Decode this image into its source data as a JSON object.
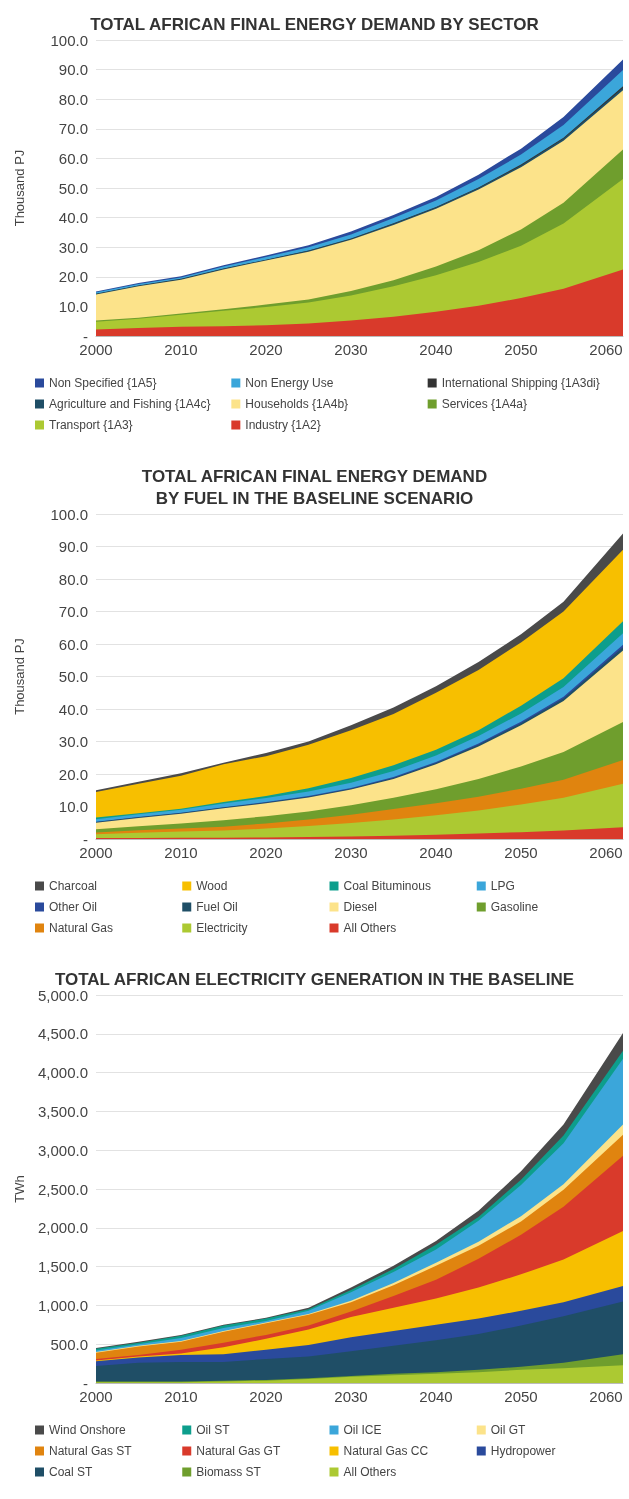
{
  "chart_data": [
    {
      "type": "area",
      "stacked": true,
      "title": "TOTAL AFRICAN FINAL ENERGY DEMAND BY SECTOR",
      "ylabel": "Thousand PJ",
      "x": [
        2000,
        2005,
        2010,
        2015,
        2020,
        2025,
        2030,
        2035,
        2040,
        2045,
        2050,
        2055,
        2062
      ],
      "xlim": [
        2000,
        2062
      ],
      "xticks": [
        2000,
        2010,
        2020,
        2030,
        2040,
        2050,
        2060
      ],
      "ylim": [
        0,
        100
      ],
      "yticks": [
        {
          "value": 0,
          "label": "-"
        },
        {
          "value": 10,
          "label": "10.0"
        },
        {
          "value": 20,
          "label": "20.0"
        },
        {
          "value": 30,
          "label": "30.0"
        },
        {
          "value": 40,
          "label": "40.0"
        },
        {
          "value": 50,
          "label": "50.0"
        },
        {
          "value": 60,
          "label": "60.0"
        },
        {
          "value": 70,
          "label": "70.0"
        },
        {
          "value": 80,
          "label": "80.0"
        },
        {
          "value": 90,
          "label": "90.0"
        },
        {
          "value": 100,
          "label": "100.0"
        }
      ],
      "grid": "y",
      "legend": "bottom",
      "series": [
        {
          "name": "Industry {1A2}",
          "color": "#d93a2b",
          "values": [
            2.2,
            2.7,
            3.1,
            3.3,
            3.6,
            4.2,
            5.2,
            6.5,
            8.2,
            10.2,
            12.8,
            16,
            22.5
          ]
        },
        {
          "name": "Transport {1A3}",
          "color": "#acc932",
          "values": [
            2.6,
            3.1,
            4.1,
            5.2,
            6.2,
            7.1,
            8.5,
            10.3,
            12.3,
            14.8,
            17.7,
            22,
            30.5
          ]
        },
        {
          "name": "Services {1A4a}",
          "color": "#6f9e2d",
          "values": [
            0.4,
            0.4,
            0.4,
            0.5,
            0.8,
            1.0,
            1.5,
            2.0,
            3.0,
            4.0,
            5.5,
            7.0,
            10
          ]
        },
        {
          "name": "Households {1A4b}",
          "color": "#fce38a",
          "values": [
            8.8,
            10.6,
            11.4,
            13.5,
            14.9,
            16.2,
            17.3,
            18.7,
            19.5,
            20.5,
            21,
            21,
            20
          ]
        },
        {
          "name": "Agriculture and Fishing {1A4c}",
          "color": "#1f4e66",
          "values": [
            0.2,
            0.2,
            0.2,
            0.2,
            0.2,
            0.3,
            0.3,
            0.4,
            0.4,
            0.5,
            0.6,
            0.7,
            0.9
          ]
        },
        {
          "name": "International Shipping {1A3di}",
          "color": "#333333",
          "values": [
            0.1,
            0.1,
            0.1,
            0.1,
            0.1,
            0.1,
            0.1,
            0.2,
            0.2,
            0.2,
            0.3,
            0.3,
            0.5
          ]
        },
        {
          "name": "Non Energy Use",
          "color": "#3ba6da",
          "values": [
            0.5,
            0.5,
            0.5,
            0.7,
            0.9,
            1.1,
            1.4,
            1.8,
            2.2,
            2.8,
            3.4,
            4.3,
            5.5
          ]
        },
        {
          "name": "Non Specified {1A5}",
          "color": "#2a4a9c",
          "values": [
            0.2,
            0.3,
            0.4,
            0.4,
            0.5,
            0.7,
            1.0,
            1.0,
            1.2,
            1.5,
            2.0,
            2.7,
            3.5
          ]
        }
      ]
    },
    {
      "type": "area",
      "stacked": true,
      "title": "TOTAL AFRICAN FINAL ENERGY DEMAND\nBY FUEL IN THE BASELINE SCENARIO",
      "ylabel": "Thousand PJ",
      "x": [
        2000,
        2005,
        2010,
        2015,
        2020,
        2025,
        2030,
        2035,
        2040,
        2045,
        2050,
        2055,
        2062
      ],
      "xlim": [
        2000,
        2062
      ],
      "xticks": [
        2000,
        2010,
        2020,
        2030,
        2040,
        2050,
        2060
      ],
      "ylim": [
        0,
        100
      ],
      "yticks": [
        {
          "value": 0,
          "label": "-"
        },
        {
          "value": 10,
          "label": "10.0"
        },
        {
          "value": 20,
          "label": "20.0"
        },
        {
          "value": 30,
          "label": "30.0"
        },
        {
          "value": 40,
          "label": "40.0"
        },
        {
          "value": 50,
          "label": "50.0"
        },
        {
          "value": 60,
          "label": "60.0"
        },
        {
          "value": 70,
          "label": "70.0"
        },
        {
          "value": 80,
          "label": "80.0"
        },
        {
          "value": 90,
          "label": "90.0"
        },
        {
          "value": 100,
          "label": "100.0"
        }
      ],
      "grid": "y",
      "legend": "bottom",
      "series": [
        {
          "name": "All Others",
          "color": "#d93a2b",
          "values": [
            0.3,
            0.3,
            0.4,
            0.4,
            0.5,
            0.6,
            0.8,
            1.0,
            1.3,
            1.7,
            2.1,
            2.6,
            3.6
          ]
        },
        {
          "name": "Electricity",
          "color": "#acc932",
          "values": [
            1.2,
            1.6,
            1.9,
            2.2,
            2.7,
            3.4,
            4.1,
            5.0,
            6.0,
            7.1,
            8.5,
            10.1,
            13.4
          ]
        },
        {
          "name": "Natural Gas",
          "color": "#e0840f",
          "values": [
            0.5,
            0.8,
            0.9,
            1.2,
            1.6,
            2.0,
            2.6,
            3.2,
            3.7,
            4.2,
            4.9,
            5.5,
            7.3
          ]
        },
        {
          "name": "Gasoline",
          "color": "#6f9e2d",
          "values": [
            1.0,
            1.2,
            1.6,
            2.0,
            2.2,
            2.5,
            2.9,
            3.5,
            4.3,
            5.5,
            6.8,
            8.6,
            11.7
          ]
        },
        {
          "name": "Diesel",
          "color": "#fce38a",
          "values": [
            2.0,
            2.6,
            3.0,
            3.7,
            4.0,
            4.3,
            4.8,
            5.8,
            7.7,
            10,
            12.7,
            15.7,
            22
          ]
        },
        {
          "name": "Fuel Oil",
          "color": "#1f4e66",
          "values": [
            0.2,
            0.2,
            0.2,
            0.2,
            0.2,
            0.2,
            0.3,
            0.3,
            0.4,
            0.5,
            0.6,
            0.7,
            1.0
          ]
        },
        {
          "name": "Other Oil",
          "color": "#2a4a9c",
          "values": [
            0.1,
            0.1,
            0.1,
            0.1,
            0.2,
            0.2,
            0.2,
            0.3,
            0.3,
            0.4,
            0.5,
            0.6,
            0.8
          ]
        },
        {
          "name": "LPG",
          "color": "#3ba6da",
          "values": [
            0.8,
            0.8,
            0.9,
            1.1,
            1.2,
            1.4,
            1.6,
            1.8,
            2.0,
            2.3,
            2.5,
            3.0,
            3.5
          ]
        },
        {
          "name": "Coal Bituminous",
          "color": "#0d9e8c",
          "values": [
            0.5,
            0.3,
            0.3,
            0.5,
            0.6,
            1.0,
            1.5,
            1.8,
            1.8,
            1.8,
            2.4,
            2.7,
            3.7
          ]
        },
        {
          "name": "Wood",
          "color": "#f7bf00",
          "values": [
            7.9,
            9.1,
            10.2,
            11.6,
            12.3,
            13.4,
            14.7,
            15.8,
            17.5,
            18.5,
            19.5,
            20.5,
            22
          ]
        },
        {
          "name": "Charcoal",
          "color": "#4a4a4a",
          "values": [
            0.5,
            0.6,
            0.7,
            0.5,
            1.0,
            1.0,
            1.5,
            2.0,
            2.0,
            2.5,
            2.5,
            3.0,
            5.0
          ]
        }
      ]
    },
    {
      "type": "area",
      "stacked": true,
      "title": "TOTAL AFRICAN ELECTRICITY GENERATION IN THE BASELINE",
      "ylabel": "TWh",
      "x": [
        2000,
        2005,
        2010,
        2015,
        2020,
        2025,
        2030,
        2035,
        2040,
        2045,
        2050,
        2055,
        2062
      ],
      "xlim": [
        2000,
        2062
      ],
      "xticks": [
        2000,
        2010,
        2020,
        2030,
        2040,
        2050,
        2060
      ],
      "ylim": [
        0,
        5000
      ],
      "yticks": [
        {
          "value": 0,
          "label": "-"
        },
        {
          "value": 500,
          "label": "500.0"
        },
        {
          "value": 1000,
          "label": "1,000.0"
        },
        {
          "value": 1500,
          "label": "1,500.0"
        },
        {
          "value": 2000,
          "label": "2,000.0"
        },
        {
          "value": 2500,
          "label": "2,500.0"
        },
        {
          "value": 3000,
          "label": "3,000.0"
        },
        {
          "value": 3500,
          "label": "3,500.0"
        },
        {
          "value": 4000,
          "label": "4,000.0"
        },
        {
          "value": 4500,
          "label": "4,500.0"
        },
        {
          "value": 5000,
          "label": "5,000.0"
        }
      ],
      "grid": "y",
      "legend": "bottom",
      "series": [
        {
          "name": "All Others",
          "color": "#acc932",
          "values": [
            10,
            10,
            10,
            20,
            30,
            50,
            80,
            100,
            120,
            140,
            170,
            190,
            230
          ]
        },
        {
          "name": "Biomass ST",
          "color": "#6f9e2d",
          "values": [
            10,
            10,
            10,
            10,
            10,
            10,
            10,
            20,
            20,
            30,
            40,
            70,
            140
          ]
        },
        {
          "name": "Coal ST",
          "color": "#1f4e66",
          "values": [
            200,
            240,
            250,
            240,
            270,
            280,
            320,
            360,
            410,
            460,
            530,
            600,
            680
          ]
        },
        {
          "name": "Hydropower",
          "color": "#2a4a9c",
          "values": [
            60,
            70,
            90,
            100,
            120,
            150,
            180,
            190,
            200,
            200,
            190,
            180,
            200
          ]
        },
        {
          "name": "Natural Gas CC",
          "color": "#f7bf00",
          "values": [
            10,
            10,
            20,
            90,
            140,
            200,
            260,
            300,
            340,
            400,
            470,
            550,
            710
          ]
        },
        {
          "name": "Natural Gas GT",
          "color": "#d93a2b",
          "values": [
            20,
            20,
            50,
            60,
            50,
            50,
            70,
            150,
            240,
            370,
            510,
            680,
            970
          ]
        },
        {
          "name": "Natural Gas ST",
          "color": "#e0840f",
          "values": [
            80,
            110,
            100,
            140,
            150,
            140,
            120,
            140,
            180,
            170,
            170,
            220,
            270
          ]
        },
        {
          "name": "Oil GT",
          "color": "#fce38a",
          "values": [
            10,
            10,
            10,
            10,
            10,
            10,
            20,
            30,
            40,
            50,
            70,
            70,
            130
          ]
        },
        {
          "name": "Oil ICE",
          "color": "#3ba6da",
          "values": [
            20,
            20,
            40,
            40,
            20,
            40,
            110,
            140,
            170,
            270,
            400,
            530,
            850
          ]
        },
        {
          "name": "Oil ST",
          "color": "#0d9e8c",
          "values": [
            20,
            20,
            30,
            30,
            30,
            20,
            30,
            40,
            60,
            50,
            70,
            100,
            100
          ]
        },
        {
          "name": "Wind Onshore",
          "color": "#4a4a4a",
          "values": [
            10,
            10,
            10,
            10,
            10,
            20,
            30,
            40,
            50,
            80,
            110,
            140,
            230
          ]
        }
      ]
    }
  ]
}
